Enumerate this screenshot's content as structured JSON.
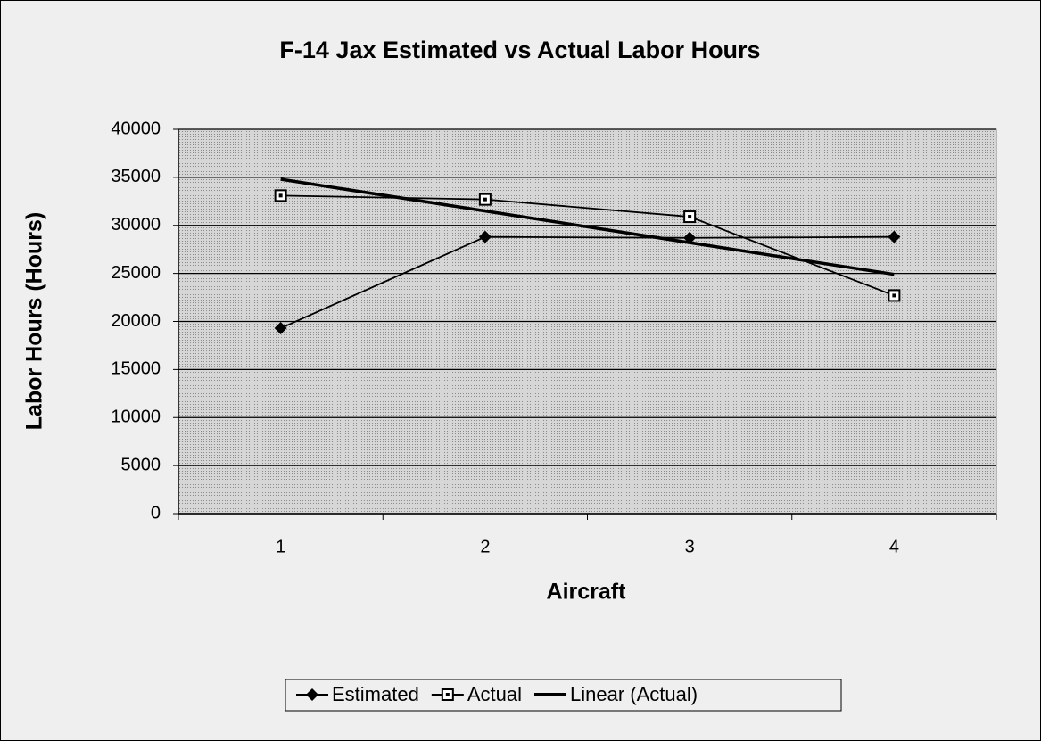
{
  "chart_data": {
    "type": "line",
    "title": "F-14 Jax Estimated vs Actual Labor Hours",
    "x_label": "Aircraft",
    "y_label": "Labor Hours (Hours)",
    "categories": [
      "1",
      "2",
      "3",
      "4"
    ],
    "series": [
      {
        "name": "Estimated",
        "color": "#000000",
        "marker": "diamond",
        "values": [
          19300,
          28800,
          28700,
          28800
        ]
      },
      {
        "name": "Actual",
        "color": "#000000",
        "marker": "square",
        "values": [
          33100,
          32700,
          30900,
          22700
        ]
      },
      {
        "name": "Linear (Actual)",
        "color": "#000000",
        "values": [
          34800,
          31500,
          28200,
          24900
        ]
      }
    ],
    "ylim": [
      0,
      40000
    ],
    "yticks": [
      0,
      5000,
      10000,
      15000,
      20000,
      25000,
      30000,
      35000,
      40000
    ],
    "grid": true,
    "legend": "bottom"
  }
}
